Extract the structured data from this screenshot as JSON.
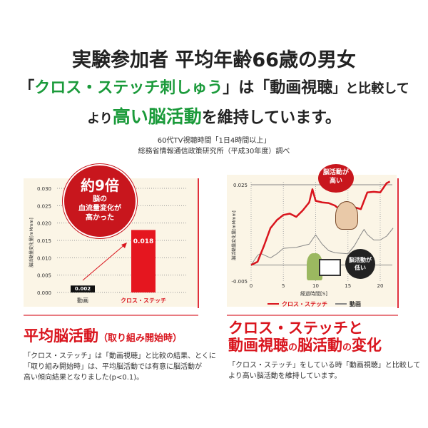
{
  "headline": {
    "line1": "実験参加者 平均年齢66歳の男女",
    "line2_a": "「",
    "line2_b": "クロス・ステッチ刺しゅう",
    "line2_c": "」は「",
    "line2_d": "動画視聴",
    "line2_e": "」と比較して",
    "line3_a": "より",
    "line3_b": "高い脳活動",
    "line3_c": "を維持しています。"
  },
  "note": {
    "line1": "60代TV視聴時間「1日4時間以上」",
    "line2": "総務省情報通信政策研究所（平成30年度）調べ"
  },
  "colors": {
    "accent": "#d9141d",
    "green": "#1a9a3a",
    "panel": "#fbf5e6",
    "gray": "#888888"
  },
  "left": {
    "bubble": {
      "big": "約9倍",
      "l1": "脳の",
      "l2": "血流量変化が",
      "l3": "高かった"
    },
    "title": "平均脳活動",
    "title_sub": "（取り組み開始時）",
    "body": [
      "「クロス・ステッチ」は「動画視聴」と比較の結果、とくに",
      "「取り組み開始時」は、平均脳活動では有意に脳活動が",
      "高い傾向結果となりました(p<0.1)。"
    ]
  },
  "right": {
    "bubble_high": [
      "脳活動が",
      "高い"
    ],
    "bubble_low": [
      "脳活動が",
      "低い"
    ],
    "title1": "クロス・ステッチと",
    "title2_a": "動画視聴",
    "title2_b": "の",
    "title2_c": "脳活動",
    "title2_d": "の",
    "title2_e": "変化",
    "body": [
      "「クロス・ステッチ」をしている時「動画視聴」と比較して",
      "より高い脳活動を維持しています。"
    ]
  },
  "chart_data": [
    {
      "type": "bar",
      "categories": [
        "動画",
        "クロス・ステッチ"
      ],
      "values": [
        0.002,
        0.018
      ],
      "data_labels": [
        "0.002",
        "0.018"
      ],
      "ylabel": "脳活動量変化量[mMmm]",
      "ylim": [
        0,
        0.03
      ],
      "yticks": [
        "0.000",
        "0.005",
        "0.010",
        "0.015",
        "0.020",
        "0.025",
        "0.030"
      ],
      "grid": true
    },
    {
      "type": "line",
      "xlabel": "経過時間[S]",
      "ylabel": "脳活動量変化量[mMmm]",
      "xlim": [
        0,
        22
      ],
      "ylim": [
        -0.005,
        0.025
      ],
      "xticks": [
        "0",
        "5",
        "10",
        "15",
        "20"
      ],
      "yticks": [
        "-0.005",
        "0.025"
      ],
      "legend": "bottom",
      "series": [
        {
          "name": "クロス・ステッチ",
          "color": "#d9141d",
          "x": [
            0,
            1,
            2,
            3,
            4,
            5,
            6,
            7,
            8,
            9,
            9.5,
            10,
            11,
            12,
            13,
            14,
            14.5,
            15,
            16,
            17,
            18,
            19,
            20,
            21,
            21.5
          ],
          "y": [
            0,
            0.001,
            0.006,
            0.0115,
            0.014,
            0.0156,
            0.016,
            0.015,
            0.017,
            0.0195,
            0.0236,
            0.02,
            0.0195,
            0.0193,
            0.0185,
            0.0168,
            0.016,
            0.0162,
            0.018,
            0.0174,
            0.0226,
            0.0228,
            0.0226,
            0.0255,
            0.026
          ]
        },
        {
          "name": "動画",
          "color": "#888888",
          "x": [
            0,
            1,
            1.5,
            3,
            4,
            5,
            7,
            8,
            9,
            10,
            11,
            12,
            13,
            15,
            16,
            17,
            17.5,
            18,
            19,
            20,
            21,
            22
          ],
          "y": [
            0,
            0.003,
            0.0036,
            0.0022,
            0.0035,
            0.0052,
            0.0055,
            0.006,
            0.0065,
            0.0094,
            0.0065,
            0.0045,
            0.0038,
            0.0035,
            0.006,
            0.0095,
            0.0111,
            0.0095,
            0.0078,
            0.0078,
            0.009,
            0.0115
          ]
        }
      ]
    }
  ]
}
